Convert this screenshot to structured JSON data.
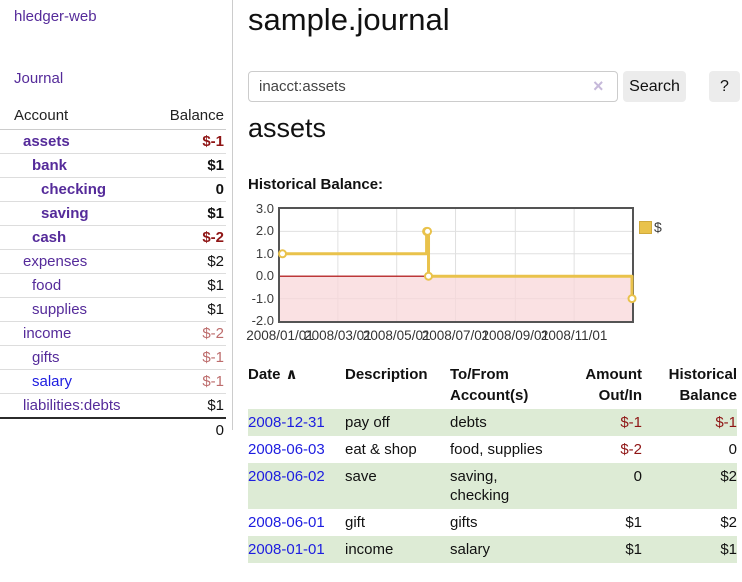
{
  "app": {
    "brand": "hledger-web",
    "nav": {
      "journal": "Journal"
    }
  },
  "colors": {
    "link_purple": "#552b9a",
    "link_blue": "#1d1de0",
    "negative": "#8f1515",
    "negative_muted": "#bd6c6c",
    "row_stripe_green": "#ddebd5",
    "chart_line_gold": "#e9c24b",
    "chart_negative_region": "#f8d7da",
    "chart_zero_line": "#aa0000"
  },
  "sidebar": {
    "columns": {
      "account": "Account",
      "balance": "Balance"
    },
    "accounts": [
      {
        "name": "assets",
        "depth": 1,
        "bold": true,
        "balance": "$-1",
        "balance_style": "negative",
        "link_style": "purple"
      },
      {
        "name": "bank",
        "depth": 2,
        "bold": true,
        "balance": "$1",
        "balance_style": "normal",
        "link_style": "purple"
      },
      {
        "name": "checking",
        "depth": 3,
        "bold": true,
        "balance": "0",
        "balance_style": "normal",
        "link_style": "purple"
      },
      {
        "name": "saving",
        "depth": 3,
        "bold": true,
        "balance": "$1",
        "balance_style": "normal",
        "link_style": "purple"
      },
      {
        "name": "cash",
        "depth": 2,
        "bold": true,
        "balance": "$-2",
        "balance_style": "negative",
        "link_style": "purple"
      },
      {
        "name": "expenses",
        "depth": 1,
        "bold": false,
        "balance": "$2",
        "balance_style": "normal",
        "link_style": "purple"
      },
      {
        "name": "food",
        "depth": 2,
        "bold": false,
        "balance": "$1",
        "balance_style": "normal",
        "link_style": "purple"
      },
      {
        "name": "supplies",
        "depth": 2,
        "bold": false,
        "balance": "$1",
        "balance_style": "normal",
        "link_style": "purple"
      },
      {
        "name": "income",
        "depth": 1,
        "bold": false,
        "balance": "$-2",
        "balance_style": "negative-muted",
        "link_style": "purple"
      },
      {
        "name": "gifts",
        "depth": 2,
        "bold": false,
        "balance": "$-1",
        "balance_style": "negative-muted",
        "link_style": "purple"
      },
      {
        "name": "salary",
        "depth": 2,
        "bold": false,
        "balance": "$-1",
        "balance_style": "negative-muted",
        "link_style": "blue"
      },
      {
        "name": "liabilities:debts",
        "depth": 1,
        "bold": false,
        "balance": "$1",
        "balance_style": "normal",
        "link_style": "purple"
      }
    ],
    "total": "0"
  },
  "header": {
    "title": "sample.journal"
  },
  "search": {
    "value": "inacct:assets",
    "clear_icon": "×",
    "button_label": "Search",
    "help_label": "?"
  },
  "account_page": {
    "title": "assets",
    "chart_label": "Historical Balance:"
  },
  "chart_data": {
    "type": "line",
    "step": true,
    "title": "Historical Balance",
    "series": [
      {
        "name": "$",
        "color": "#e9c24b",
        "points": [
          [
            "2008-01-01",
            1
          ],
          [
            "2008-06-01",
            2
          ],
          [
            "2008-06-02",
            2
          ],
          [
            "2008-06-03",
            0
          ],
          [
            "2008-12-31",
            -1
          ]
        ]
      }
    ],
    "xrange": [
      "2008-01-01",
      "2008-12-31"
    ],
    "ylim": [
      -2,
      3
    ],
    "yticks": [
      3,
      2,
      1,
      0,
      -1,
      -2
    ],
    "ytick_labels": [
      "3.0",
      "2.0",
      "1.0",
      "0.0",
      "-1.0",
      "-2.0"
    ],
    "xtick_dates": [
      "2008-01-01",
      "2008-03-01",
      "2008-05-01",
      "2008-07-01",
      "2008-09-01",
      "2008-11-01"
    ],
    "xtick_labels": [
      "2008/01/01",
      "2008/03/01",
      "2008/05/01",
      "2008/07/01",
      "2008/09/01",
      "2008/11/01"
    ],
    "legend": {
      "label": "$",
      "position": "top-right"
    },
    "grid": true,
    "negative_region_fill": "#f8d7da",
    "zero_line_color": "#aa0000"
  },
  "register": {
    "headers": [
      "Date",
      "Description",
      "To/From Account(s)",
      "Amount Out/In",
      "Historical Balance"
    ],
    "sort_icon": "∧",
    "rows": [
      {
        "date": "2008-12-31",
        "description": "pay off",
        "accounts": "debts",
        "amount": "$-1",
        "amount_negative": true,
        "balance": "$-1",
        "balance_negative": true
      },
      {
        "date": "2008-06-03",
        "description": "eat & shop",
        "accounts": "food, supplies",
        "amount": "$-2",
        "amount_negative": true,
        "balance": "0",
        "balance_negative": false
      },
      {
        "date": "2008-06-02",
        "description": "save",
        "accounts": "saving, checking",
        "amount": "0",
        "amount_negative": false,
        "balance": "$2",
        "balance_negative": false
      },
      {
        "date": "2008-06-01",
        "description": "gift",
        "accounts": "gifts",
        "amount": "$1",
        "amount_negative": false,
        "balance": "$2",
        "balance_negative": false
      },
      {
        "date": "2008-01-01",
        "description": "income",
        "accounts": "salary",
        "amount": "$1",
        "amount_negative": false,
        "balance": "$1",
        "balance_negative": false
      }
    ]
  }
}
